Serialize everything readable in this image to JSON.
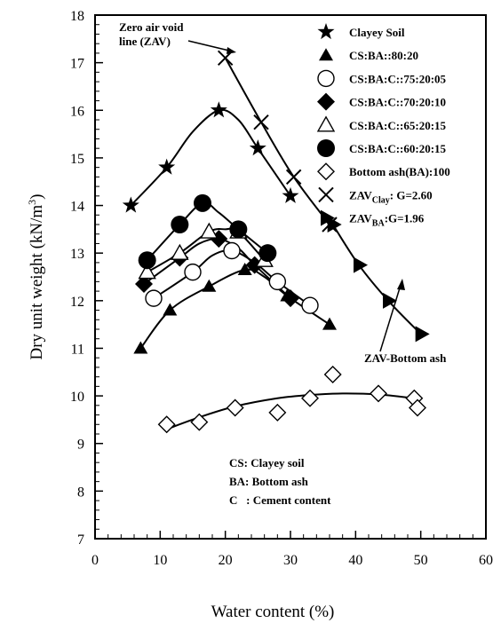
{
  "chart_data": {
    "type": "line",
    "xlabel": "Water content (%)",
    "ylabel_main": "Dry unit weight (kN/m",
    "ylabel_sup": "3",
    "ylabel_close": ")",
    "xlim": [
      0,
      60
    ],
    "ylim": [
      7,
      18
    ],
    "xticks": [
      0,
      10,
      20,
      30,
      40,
      50,
      60
    ],
    "yticks": [
      7,
      8,
      9,
      10,
      11,
      12,
      13,
      14,
      15,
      16,
      17,
      18
    ],
    "grid": false,
    "legend_position": "top-right",
    "series": [
      {
        "name": "Clayey Soil",
        "marker": "star",
        "points": [
          [
            5.5,
            14.0
          ],
          [
            11,
            14.8
          ],
          [
            19,
            16.0
          ],
          [
            25,
            15.2
          ],
          [
            30,
            14.2
          ]
        ],
        "curve": [
          [
            5.5,
            14.0
          ],
          [
            11,
            14.8
          ],
          [
            15,
            15.55
          ],
          [
            19,
            16.0
          ],
          [
            22,
            15.8
          ],
          [
            25,
            15.2
          ],
          [
            30,
            14.2
          ]
        ]
      },
      {
        "name": "CS:BA::80:20",
        "marker": "triangle-filled",
        "points": [
          [
            7,
            11.0
          ],
          [
            11.5,
            11.8
          ],
          [
            17.5,
            12.3
          ],
          [
            23,
            12.65
          ],
          [
            29.5,
            12.1
          ],
          [
            36,
            11.5
          ]
        ],
        "curve": [
          [
            7,
            11.0
          ],
          [
            11.5,
            11.8
          ],
          [
            17.5,
            12.3
          ],
          [
            23,
            12.65
          ],
          [
            26,
            12.5
          ],
          [
            29.5,
            12.1
          ],
          [
            36,
            11.5
          ]
        ]
      },
      {
        "name": "CS:BA:C::75:20:05",
        "marker": "circle-open",
        "points": [
          [
            9,
            12.05
          ],
          [
            15,
            12.6
          ],
          [
            21,
            13.05
          ],
          [
            28,
            12.4
          ],
          [
            33,
            11.9
          ]
        ],
        "curve": [
          [
            9,
            12.05
          ],
          [
            15,
            12.6
          ],
          [
            18,
            12.95
          ],
          [
            21,
            13.05
          ],
          [
            24.5,
            12.8
          ],
          [
            28,
            12.4
          ],
          [
            33,
            11.9
          ]
        ]
      },
      {
        "name": "CS:BA:C::70:20:10",
        "marker": "diamond-filled",
        "points": [
          [
            7.5,
            12.35
          ],
          [
            13,
            12.9
          ],
          [
            19,
            13.3
          ],
          [
            24.5,
            12.75
          ],
          [
            30,
            12.05
          ]
        ],
        "curve": [
          [
            7.5,
            12.35
          ],
          [
            13,
            12.9
          ],
          [
            16,
            13.2
          ],
          [
            19,
            13.3
          ],
          [
            22,
            13.1
          ],
          [
            24.5,
            12.75
          ],
          [
            30,
            12.05
          ]
        ]
      },
      {
        "name": "CS:BA:C::65:20:15",
        "marker": "triangle-open",
        "points": [
          [
            8,
            12.6
          ],
          [
            13,
            13.0
          ],
          [
            17.5,
            13.45
          ],
          [
            22,
            13.45
          ],
          [
            26,
            12.85
          ]
        ],
        "curve": [
          [
            8,
            12.6
          ],
          [
            13,
            13.0
          ],
          [
            17.5,
            13.45
          ],
          [
            20,
            13.5
          ],
          [
            22,
            13.45
          ],
          [
            26,
            12.85
          ]
        ]
      },
      {
        "name": "CS:BA:C::60:20:15",
        "marker": "circle-filled",
        "points": [
          [
            8,
            12.85
          ],
          [
            13,
            13.6
          ],
          [
            16.5,
            14.05
          ],
          [
            22,
            13.5
          ],
          [
            26.5,
            13.0
          ]
        ],
        "curve": [
          [
            8,
            12.85
          ],
          [
            13,
            13.6
          ],
          [
            16.5,
            14.05
          ],
          [
            19,
            13.85
          ],
          [
            22,
            13.5
          ],
          [
            26.5,
            13.0
          ]
        ]
      },
      {
        "name": "Bottom ash(BA):100",
        "marker": "diamond-open",
        "points": [
          [
            11,
            9.4
          ],
          [
            16,
            9.45
          ],
          [
            21.5,
            9.75
          ],
          [
            28,
            9.65
          ],
          [
            33,
            9.95
          ],
          [
            36.5,
            10.45
          ],
          [
            43.5,
            10.05
          ],
          [
            49,
            9.95
          ],
          [
            49.5,
            9.75
          ]
        ],
        "curve": [
          [
            11,
            9.3
          ],
          [
            16,
            9.55
          ],
          [
            21.5,
            9.78
          ],
          [
            28,
            9.95
          ],
          [
            33,
            10.02
          ],
          [
            38,
            10.05
          ],
          [
            43.5,
            10.03
          ],
          [
            49,
            9.95
          ]
        ]
      },
      {
        "name_main": "ZAV",
        "name_sub": "Clay",
        "name_rest": ": G=2.60",
        "marker": "cross",
        "points": [
          [
            20,
            17.1
          ],
          [
            25.5,
            15.75
          ],
          [
            30.5,
            14.6
          ],
          [
            36,
            13.6
          ]
        ],
        "curve": [
          [
            20,
            17.1
          ],
          [
            25.5,
            15.75
          ],
          [
            30.5,
            14.6
          ],
          [
            36,
            13.6
          ]
        ]
      },
      {
        "name_main": "ZAV",
        "name_sub": "BA",
        "name_rest": ":G=1.96",
        "marker": "triangle-right",
        "points": [
          [
            36.5,
            13.6
          ],
          [
            40.5,
            12.75
          ],
          [
            45,
            12.0
          ],
          [
            50,
            11.3
          ]
        ],
        "curve": [
          [
            36.5,
            13.6
          ],
          [
            40.5,
            12.75
          ],
          [
            45,
            12.0
          ],
          [
            50,
            11.3
          ]
        ]
      }
    ],
    "annotations": {
      "zav_line_1": "Zero air void",
      "zav_line_2": "line (ZAV)",
      "zav_bottom": "ZAV-Bottom ash",
      "note_cs": "CS: Clayey soil",
      "note_ba": "BA: Bottom ash",
      "note_c": "C   : Cement content"
    }
  }
}
